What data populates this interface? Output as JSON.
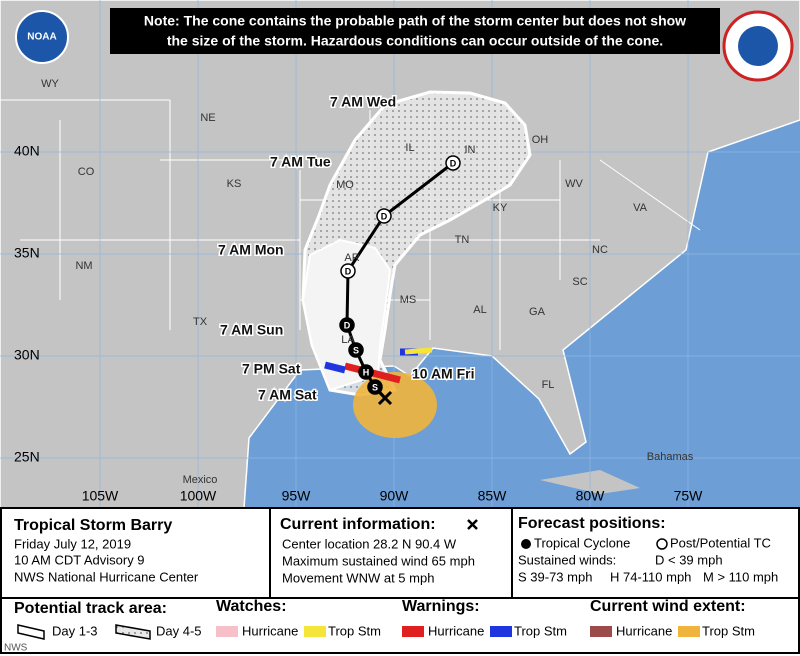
{
  "note": {
    "line1": "Note: The cone contains the probable path of the storm center but does not show",
    "line2": "the size of the storm. Hazardous conditions can occur outside of the cone."
  },
  "map": {
    "logo": "NOAA",
    "states": [
      "WY",
      "NE",
      "CO",
      "KS",
      "NM",
      "TX",
      "MO",
      "IL",
      "IN",
      "OH",
      "KY",
      "WV",
      "VA",
      "TN",
      "NC",
      "SC",
      "GA",
      "AL",
      "MS",
      "AR",
      "LA",
      "FL"
    ],
    "latitudes": [
      "40N",
      "35N",
      "30N",
      "25N"
    ],
    "longitudes": [
      "105W",
      "100W",
      "95W",
      "90W",
      "85W",
      "80W",
      "75W"
    ],
    "places": [
      "Mexico",
      "Bahamas"
    ],
    "track_labels": [
      "7 AM Wed",
      "7 AM Tue",
      "7 AM Mon",
      "7 AM Sun",
      "7 PM Sat",
      "7 AM Sat",
      "10 AM Fri"
    ],
    "points": [
      "D",
      "D",
      "D",
      "D",
      "S",
      "H",
      "S"
    ]
  },
  "legend": {
    "storm": {
      "name": "Tropical Storm Barry",
      "date": "Friday July 12, 2019",
      "advisory": "10 AM CDT Advisory 9",
      "agency": "NWS National Hurricane Center"
    },
    "current": {
      "title": "Current information:",
      "location": "Center location 28.2 N 90.4 W",
      "wind": "Maximum sustained wind 65 mph",
      "movement": "Movement WNW at 5 mph"
    },
    "forecast": {
      "title": "Forecast positions:",
      "tropical": "Tropical Cyclone",
      "post": "Post/Potential TC",
      "winds": "Sustained winds:",
      "d": "D < 39 mph",
      "s": "S 39-73 mph",
      "h": "H 74-110 mph",
      "m": "M > 110 mph"
    },
    "track_area": {
      "title": "Potential track area:",
      "day13": "Day 1-3",
      "day45": "Day 4-5"
    },
    "watches": {
      "title": "Watches:",
      "hurricane": "Hurricane",
      "tropical": "Trop Stm"
    },
    "warnings": {
      "title": "Warnings:",
      "hurricane": "Hurricane",
      "tropical": "Trop Stm"
    },
    "wind_extent": {
      "title": "Current wind extent:",
      "hurricane": "Hurricane",
      "tropical": "Trop Stm"
    }
  },
  "watermark": "NWS"
}
